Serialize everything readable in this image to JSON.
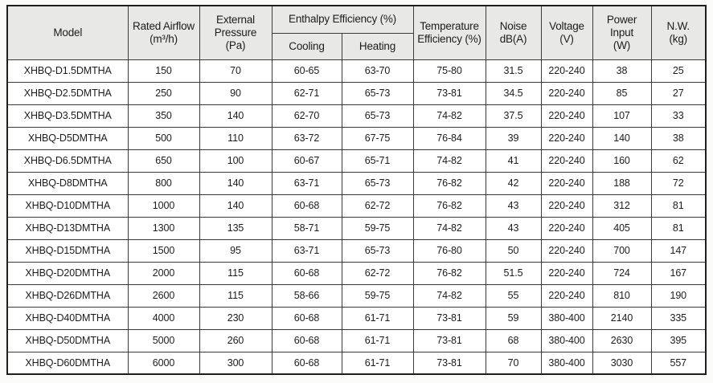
{
  "colors": {
    "header_bg": "#e8e9e6",
    "row_bg": "#ffffff",
    "border_inner": "#3a3a3a",
    "border_outer": "#1e1e1e",
    "text": "#1c1c1c",
    "page_bg": "#fbfbfa"
  },
  "table": {
    "header": {
      "model": "Model",
      "rated_airflow": "Rated Airflow\n(m³/h)",
      "external_pressure": "External\nPressure\n(Pa)",
      "enthalpy_efficiency": "Enthalpy Efficiency (%)",
      "cooling": "Cooling",
      "heating": "Heating",
      "temperature_efficiency": "Temperature\nEfficiency (%)",
      "noise": "Noise\ndB(A)",
      "voltage": "Voltage\n(V)",
      "power_input": "Power Input\n(W)",
      "net_weight": "N.W.\n(kg)"
    },
    "column_keys": [
      "model",
      "rated_airflow",
      "external_pressure",
      "cooling",
      "heating",
      "temperature_efficiency",
      "noise",
      "voltage",
      "power_input",
      "net_weight"
    ],
    "rows": [
      [
        "XHBQ-D1.5DMTHA",
        "150",
        "70",
        "60-65",
        "63-70",
        "75-80",
        "31.5",
        "220-240",
        "38",
        "25"
      ],
      [
        "XHBQ-D2.5DMTHA",
        "250",
        "90",
        "62-71",
        "65-73",
        "73-81",
        "34.5",
        "220-240",
        "85",
        "27"
      ],
      [
        "XHBQ-D3.5DMTHA",
        "350",
        "140",
        "62-70",
        "65-73",
        "74-82",
        "37.5",
        "220-240",
        "107",
        "33"
      ],
      [
        "XHBQ-D5DMTHA",
        "500",
        "110",
        "63-72",
        "67-75",
        "76-84",
        "39",
        "220-240",
        "140",
        "38"
      ],
      [
        "XHBQ-D6.5DMTHA",
        "650",
        "100",
        "60-67",
        "65-71",
        "74-82",
        "41",
        "220-240",
        "160",
        "62"
      ],
      [
        "XHBQ-D8DMTHA",
        "800",
        "140",
        "63-71",
        "65-73",
        "76-82",
        "42",
        "220-240",
        "188",
        "72"
      ],
      [
        "XHBQ-D10DMTHA",
        "1000",
        "140",
        "60-68",
        "62-72",
        "76-82",
        "43",
        "220-240",
        "312",
        "81"
      ],
      [
        "XHBQ-D13DMTHA",
        "1300",
        "135",
        "58-71",
        "59-75",
        "74-82",
        "43",
        "220-240",
        "405",
        "81"
      ],
      [
        "XHBQ-D15DMTHA",
        "1500",
        "95",
        "63-71",
        "65-73",
        "76-80",
        "50",
        "220-240",
        "700",
        "147"
      ],
      [
        "XHBQ-D20DMTHA",
        "2000",
        "115",
        "60-68",
        "62-72",
        "76-82",
        "51.5",
        "220-240",
        "724",
        "167"
      ],
      [
        "XHBQ-D26DMTHA",
        "2600",
        "115",
        "58-66",
        "59-75",
        "74-82",
        "55",
        "220-240",
        "810",
        "190"
      ],
      [
        "XHBQ-D40DMTHA",
        "4000",
        "230",
        "60-68",
        "61-71",
        "73-81",
        "59",
        "380-400",
        "2140",
        "335"
      ],
      [
        "XHBQ-D50DMTHA",
        "5000",
        "260",
        "60-68",
        "61-71",
        "73-81",
        "68",
        "380-400",
        "2630",
        "395"
      ],
      [
        "XHBQ-D60DMTHA",
        "6000",
        "300",
        "60-68",
        "61-71",
        "73-81",
        "70",
        "380-400",
        "3030",
        "557"
      ]
    ]
  }
}
